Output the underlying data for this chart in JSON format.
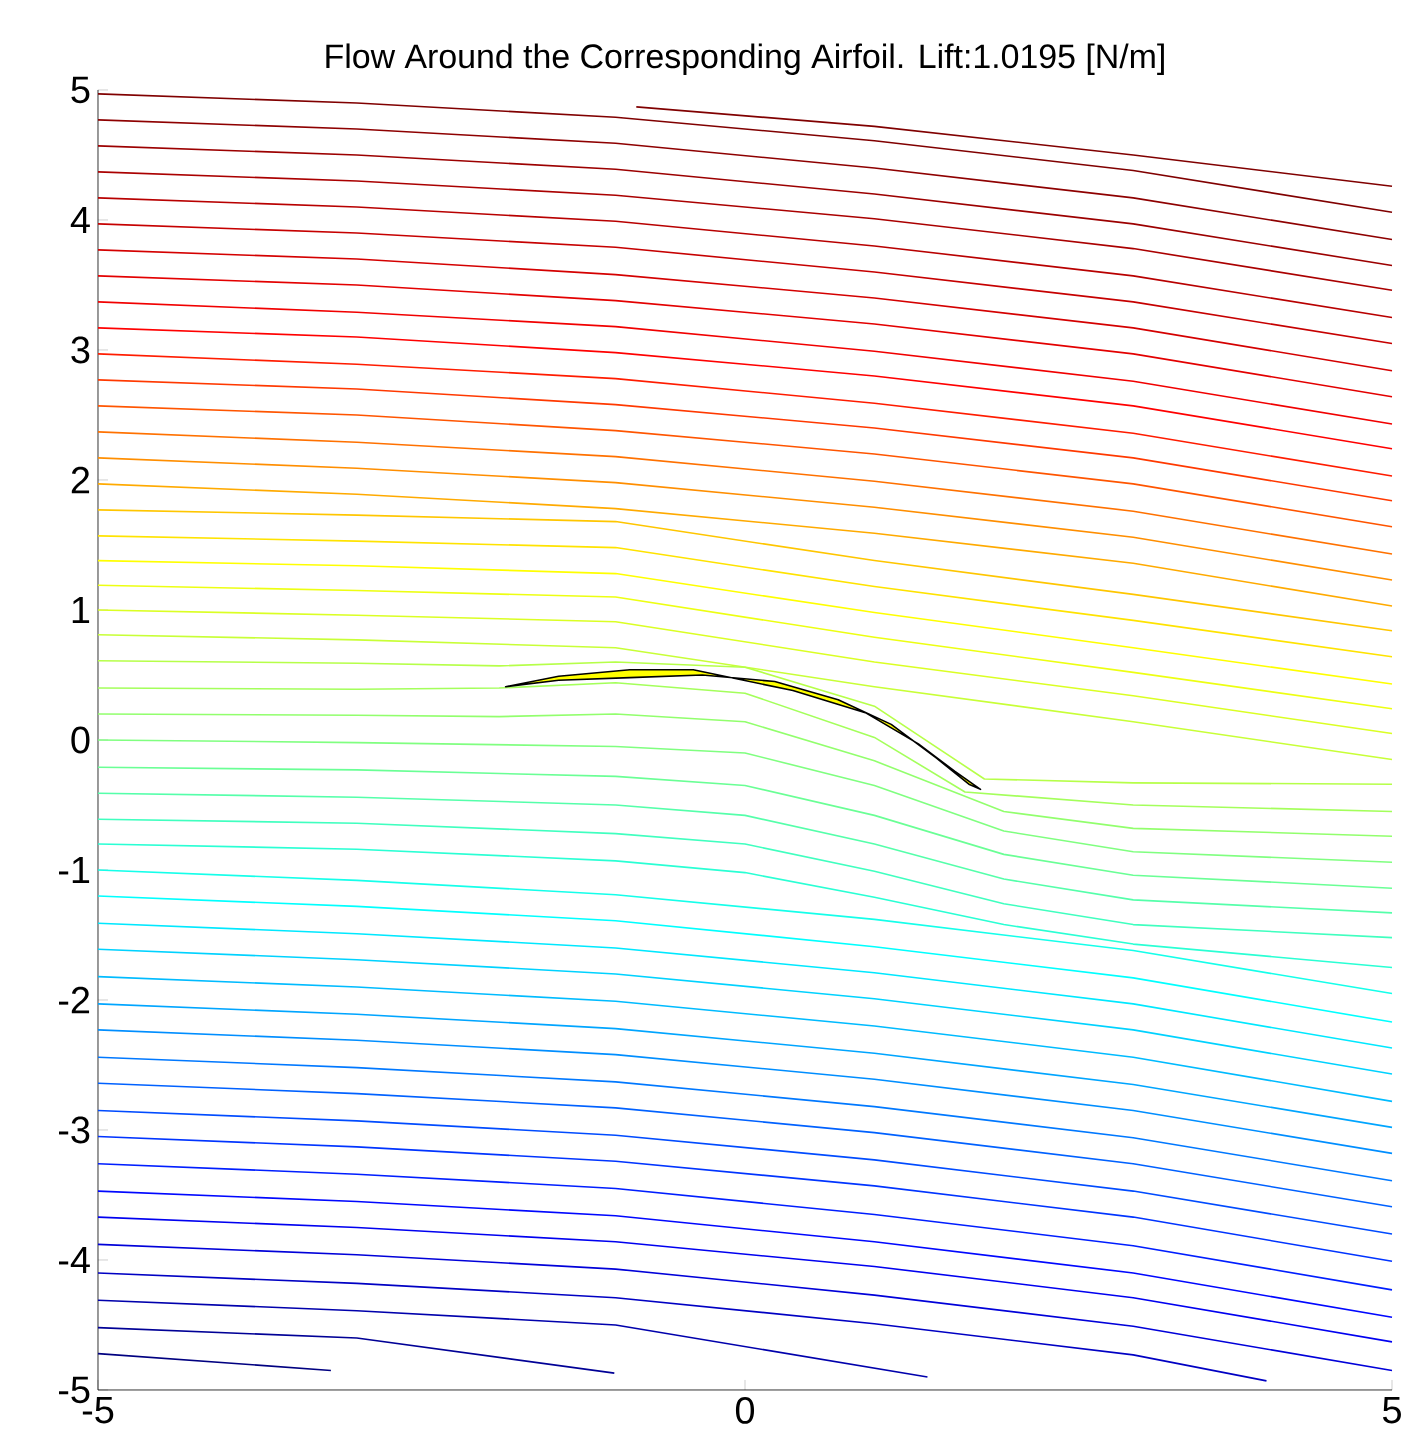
{
  "chart_data": {
    "type": "line",
    "title": "Flow Around the Corresponding Airfoil.    Lift:1.0195  [N/m]",
    "xlim": [
      -5,
      5
    ],
    "ylim": [
      -5,
      5
    ],
    "xticks": [
      -5,
      0,
      5
    ],
    "yticks": [
      -5,
      -4,
      -3,
      -2,
      -1,
      0,
      1,
      2,
      3,
      4,
      5
    ],
    "marker": "none",
    "line_style": "solid",
    "series": [
      {
        "color": "#800000",
        "x": [
          -0.84,
          1,
          3,
          5
        ],
        "values": [
          4.87,
          4.72,
          4.5,
          4.26
        ]
      },
      {
        "color": "#800000",
        "x": [
          -5,
          -3,
          -1,
          1,
          3,
          5
        ],
        "values": [
          4.97,
          4.9,
          4.79,
          4.61,
          4.38,
          4.06
        ]
      },
      {
        "color": "#8e0000",
        "x": [
          -5,
          -3,
          -1,
          1,
          3,
          5
        ],
        "values": [
          4.77,
          4.7,
          4.59,
          4.4,
          4.17,
          3.85
        ]
      },
      {
        "color": "#9c0000",
        "x": [
          -5,
          -3,
          -1,
          1,
          3,
          5
        ],
        "values": [
          4.57,
          4.5,
          4.39,
          4.2,
          3.97,
          3.65
        ]
      },
      {
        "color": "#aa0000",
        "x": [
          -5,
          -3,
          -1,
          1,
          3,
          5
        ],
        "values": [
          4.37,
          4.3,
          4.19,
          4.01,
          3.78,
          3.46
        ]
      },
      {
        "color": "#b80000",
        "x": [
          -5,
          -3,
          -1,
          1,
          3,
          5
        ],
        "values": [
          4.17,
          4.1,
          3.99,
          3.8,
          3.57,
          3.25
        ]
      },
      {
        "color": "#c60000",
        "x": [
          -5,
          -3,
          -1,
          1,
          3,
          5
        ],
        "values": [
          3.97,
          3.9,
          3.79,
          3.6,
          3.37,
          3.05
        ]
      },
      {
        "color": "#d40000",
        "x": [
          -5,
          -3,
          -1,
          1,
          3,
          5
        ],
        "values": [
          3.77,
          3.7,
          3.58,
          3.4,
          3.17,
          2.84
        ]
      },
      {
        "color": "#e30000",
        "x": [
          -5,
          -3,
          -1,
          1,
          3,
          5
        ],
        "values": [
          3.57,
          3.5,
          3.38,
          3.2,
          2.97,
          2.64
        ]
      },
      {
        "color": "#f10000",
        "x": [
          -5,
          -3,
          -1,
          1,
          3,
          5
        ],
        "values": [
          3.37,
          3.29,
          3.18,
          2.99,
          2.76,
          2.43
        ]
      },
      {
        "color": "#ff0000",
        "x": [
          -5,
          -3,
          -1,
          1,
          3,
          5
        ],
        "values": [
          3.17,
          3.1,
          2.98,
          2.8,
          2.57,
          2.24
        ]
      },
      {
        "color": "#ff1c00",
        "x": [
          -5,
          -3,
          -1,
          1,
          3,
          5
        ],
        "values": [
          2.97,
          2.89,
          2.78,
          2.59,
          2.36,
          2.03
        ]
      },
      {
        "color": "#ff3900",
        "x": [
          -5,
          -3,
          -1,
          1,
          3,
          5
        ],
        "values": [
          2.77,
          2.7,
          2.58,
          2.4,
          2.17,
          1.84
        ]
      },
      {
        "color": "#ff5500",
        "x": [
          -5,
          -3,
          -1,
          1,
          3,
          5
        ],
        "values": [
          2.57,
          2.5,
          2.38,
          2.2,
          1.97,
          1.64
        ]
      },
      {
        "color": "#ff7100",
        "x": [
          -5,
          -3,
          -1,
          1,
          3,
          5
        ],
        "values": [
          2.37,
          2.29,
          2.18,
          1.99,
          1.76,
          1.43
        ]
      },
      {
        "color": "#ff8e00",
        "x": [
          -5,
          -3,
          -1,
          1,
          3,
          5
        ],
        "values": [
          2.17,
          2.09,
          1.98,
          1.79,
          1.56,
          1.23
        ]
      },
      {
        "color": "#ffaa00",
        "x": [
          -5,
          -3,
          -1,
          1,
          3,
          5
        ],
        "values": [
          1.97,
          1.89,
          1.78,
          1.59,
          1.36,
          1.03
        ]
      },
      {
        "color": "#ffc600",
        "x": [
          -5,
          -3,
          -1,
          1,
          3,
          5
        ],
        "values": [
          1.77,
          1.73,
          1.68,
          1.38,
          1.12,
          0.84
        ]
      },
      {
        "color": "#ffe300",
        "x": [
          -5,
          -3,
          -1,
          1,
          3,
          5
        ],
        "values": [
          1.57,
          1.53,
          1.48,
          1.18,
          0.92,
          0.64
        ]
      },
      {
        "color": "#ffff00",
        "x": [
          -5,
          -3,
          -1,
          1,
          3,
          5
        ],
        "values": [
          1.38,
          1.34,
          1.28,
          0.98,
          0.71,
          0.43
        ]
      },
      {
        "color": "#edff12",
        "x": [
          -5,
          -3,
          -1,
          1,
          3,
          5
        ],
        "values": [
          1.19,
          1.15,
          1.1,
          0.79,
          0.52,
          0.24
        ]
      },
      {
        "color": "#dbff24",
        "x": [
          -5,
          -3,
          -1,
          1,
          3,
          5
        ],
        "values": [
          1.0,
          0.96,
          0.91,
          0.6,
          0.34,
          0.05
        ]
      },
      {
        "color": "#c8ff37",
        "x": [
          -5,
          -3,
          -1,
          1,
          3,
          5
        ],
        "values": [
          0.81,
          0.77,
          0.71,
          0.41,
          0.14,
          -0.15
        ]
      },
      {
        "color": "#b6ff49",
        "x": [
          -5,
          -3,
          -1.9,
          -1,
          0,
          1,
          1.85,
          3,
          5
        ],
        "values": [
          0.61,
          0.59,
          0.57,
          0.6,
          0.56,
          0.26,
          -0.3,
          -0.33,
          -0.34
        ]
      },
      {
        "color": "#a4ff5b",
        "x": [
          -5,
          -3,
          -1.9,
          -1,
          0,
          1,
          1.7,
          3,
          5
        ],
        "values": [
          0.4,
          0.39,
          0.4,
          0.44,
          0.36,
          0.02,
          -0.4,
          -0.5,
          -0.55
        ]
      },
      {
        "color": "#92ff6d",
        "x": [
          -5,
          -3,
          -1.9,
          -1,
          0,
          1,
          2,
          3,
          5
        ],
        "values": [
          0.2,
          0.19,
          0.18,
          0.2,
          0.14,
          -0.16,
          -0.55,
          -0.68,
          -0.74
        ]
      },
      {
        "color": "#80ff80",
        "x": [
          -5,
          -3,
          -1,
          0,
          1,
          2,
          3,
          5
        ],
        "values": [
          0.0,
          -0.02,
          -0.05,
          -0.1,
          -0.35,
          -0.7,
          -0.86,
          -0.94
        ]
      },
      {
        "color": "#6aff95",
        "x": [
          -5,
          -3,
          -1,
          0,
          1,
          2,
          3,
          5
        ],
        "values": [
          -0.21,
          -0.23,
          -0.28,
          -0.35,
          -0.58,
          -0.88,
          -1.04,
          -1.14
        ]
      },
      {
        "color": "#55ffaa",
        "x": [
          -5,
          -3,
          -1,
          0,
          1,
          2,
          3,
          5
        ],
        "values": [
          -0.41,
          -0.44,
          -0.5,
          -0.58,
          -0.8,
          -1.07,
          -1.23,
          -1.33
        ]
      },
      {
        "color": "#40ffbf",
        "x": [
          -5,
          -3,
          -1,
          0,
          1,
          2,
          3,
          5
        ],
        "values": [
          -0.61,
          -0.64,
          -0.72,
          -0.8,
          -1.01,
          -1.26,
          -1.42,
          -1.52
        ]
      },
      {
        "color": "#2affd4",
        "x": [
          -5,
          -3,
          -1,
          0,
          1,
          2,
          3,
          5
        ],
        "values": [
          -0.8,
          -0.84,
          -0.93,
          -1.02,
          -1.21,
          -1.42,
          -1.57,
          -1.75
        ]
      },
      {
        "color": "#15ffea",
        "x": [
          -5,
          -3,
          -1,
          1,
          3,
          5
        ],
        "values": [
          -1.0,
          -1.08,
          -1.19,
          -1.38,
          -1.62,
          -1.95
        ]
      },
      {
        "color": "#00ffff",
        "x": [
          -5,
          -3,
          -1,
          1,
          3,
          5
        ],
        "values": [
          -1.2,
          -1.28,
          -1.39,
          -1.59,
          -1.83,
          -2.17
        ]
      },
      {
        "color": "#00e8ff",
        "x": [
          -5,
          -3,
          -1,
          1,
          3,
          5
        ],
        "values": [
          -1.41,
          -1.49,
          -1.6,
          -1.79,
          -2.03,
          -2.37
        ]
      },
      {
        "color": "#00d2ff",
        "x": [
          -5,
          -3,
          -1,
          1,
          3,
          5
        ],
        "values": [
          -1.61,
          -1.69,
          -1.8,
          -1.99,
          -2.23,
          -2.57
        ]
      },
      {
        "color": "#00bbff",
        "x": [
          -5,
          -3,
          -1,
          1,
          3,
          5
        ],
        "values": [
          -1.82,
          -1.9,
          -2.01,
          -2.2,
          -2.44,
          -2.78
        ]
      },
      {
        "color": "#00a5ff",
        "x": [
          -5,
          -3,
          -1,
          1,
          3,
          5
        ],
        "values": [
          -2.03,
          -2.11,
          -2.22,
          -2.41,
          -2.65,
          -2.98
        ]
      },
      {
        "color": "#008eff",
        "x": [
          -5,
          -3,
          -1,
          1,
          3,
          5
        ],
        "values": [
          -2.23,
          -2.31,
          -2.42,
          -2.61,
          -2.85,
          -3.18
        ]
      },
      {
        "color": "#0078ff",
        "x": [
          -5,
          -3,
          -1,
          1,
          3,
          5
        ],
        "values": [
          -2.44,
          -2.52,
          -2.63,
          -2.82,
          -3.06,
          -3.39
        ]
      },
      {
        "color": "#0061ff",
        "x": [
          -5,
          -3,
          -1,
          1,
          3,
          5
        ],
        "values": [
          -2.64,
          -2.72,
          -2.83,
          -3.02,
          -3.26,
          -3.59
        ]
      },
      {
        "color": "#004bff",
        "x": [
          -5,
          -3,
          -1,
          1,
          3,
          5
        ],
        "values": [
          -2.85,
          -2.93,
          -3.04,
          -3.23,
          -3.47,
          -3.8
        ]
      },
      {
        "color": "#0034ff",
        "x": [
          -5,
          -3,
          -1,
          1,
          3,
          5
        ],
        "values": [
          -3.05,
          -3.13,
          -3.24,
          -3.43,
          -3.67,
          -4.01
        ]
      },
      {
        "color": "#001eff",
        "x": [
          -5,
          -3,
          -1,
          1,
          3,
          5
        ],
        "values": [
          -3.26,
          -3.34,
          -3.45,
          -3.65,
          -3.89,
          -4.23
        ]
      },
      {
        "color": "#0007ff",
        "x": [
          -5,
          -3,
          -1,
          1,
          3,
          5
        ],
        "values": [
          -3.47,
          -3.55,
          -3.66,
          -3.86,
          -4.1,
          -4.44
        ]
      },
      {
        "color": "#0000f0",
        "x": [
          -5,
          -3,
          -1,
          1,
          3,
          5
        ],
        "values": [
          -3.67,
          -3.75,
          -3.86,
          -4.05,
          -4.29,
          -4.63
        ]
      },
      {
        "color": "#0000d9",
        "x": [
          -5,
          -3,
          -1,
          1,
          3,
          5
        ],
        "values": [
          -3.88,
          -3.96,
          -4.07,
          -4.27,
          -4.51,
          -4.85
        ]
      },
      {
        "color": "#0000c3",
        "x": [
          -5,
          -3,
          -1,
          1,
          3,
          4.03
        ],
        "values": [
          -4.1,
          -4.18,
          -4.29,
          -4.49,
          -4.73,
          -4.93
        ]
      },
      {
        "color": "#0000ac",
        "x": [
          -5,
          -3,
          -1,
          1.41
        ],
        "values": [
          -4.31,
          -4.39,
          -4.5,
          -4.9
        ]
      },
      {
        "color": "#000096",
        "x": [
          -5,
          -3,
          -1.01
        ],
        "values": [
          -4.52,
          -4.6,
          -4.87
        ]
      },
      {
        "color": "#000080",
        "x": [
          -5,
          -3.2
        ],
        "values": [
          -4.72,
          -4.85
        ]
      },
      {
        "type": "area",
        "color": "#ffff00",
        "x": [
          -1.85,
          -1.44,
          -0.89,
          -0.4,
          0.37,
          0.93,
          1.34,
          1.62,
          1.82,
          1.73,
          1.48,
          1.13,
          0.72,
          0.23,
          -0.33,
          -0.89,
          -1.44
        ],
        "values": [
          0.41,
          0.49,
          0.54,
          0.54,
          0.38,
          0.21,
          -0.03,
          -0.24,
          -0.38,
          -0.34,
          -0.14,
          0.12,
          0.31,
          0.45,
          0.5,
          0.48,
          0.46
        ]
      }
    ]
  }
}
